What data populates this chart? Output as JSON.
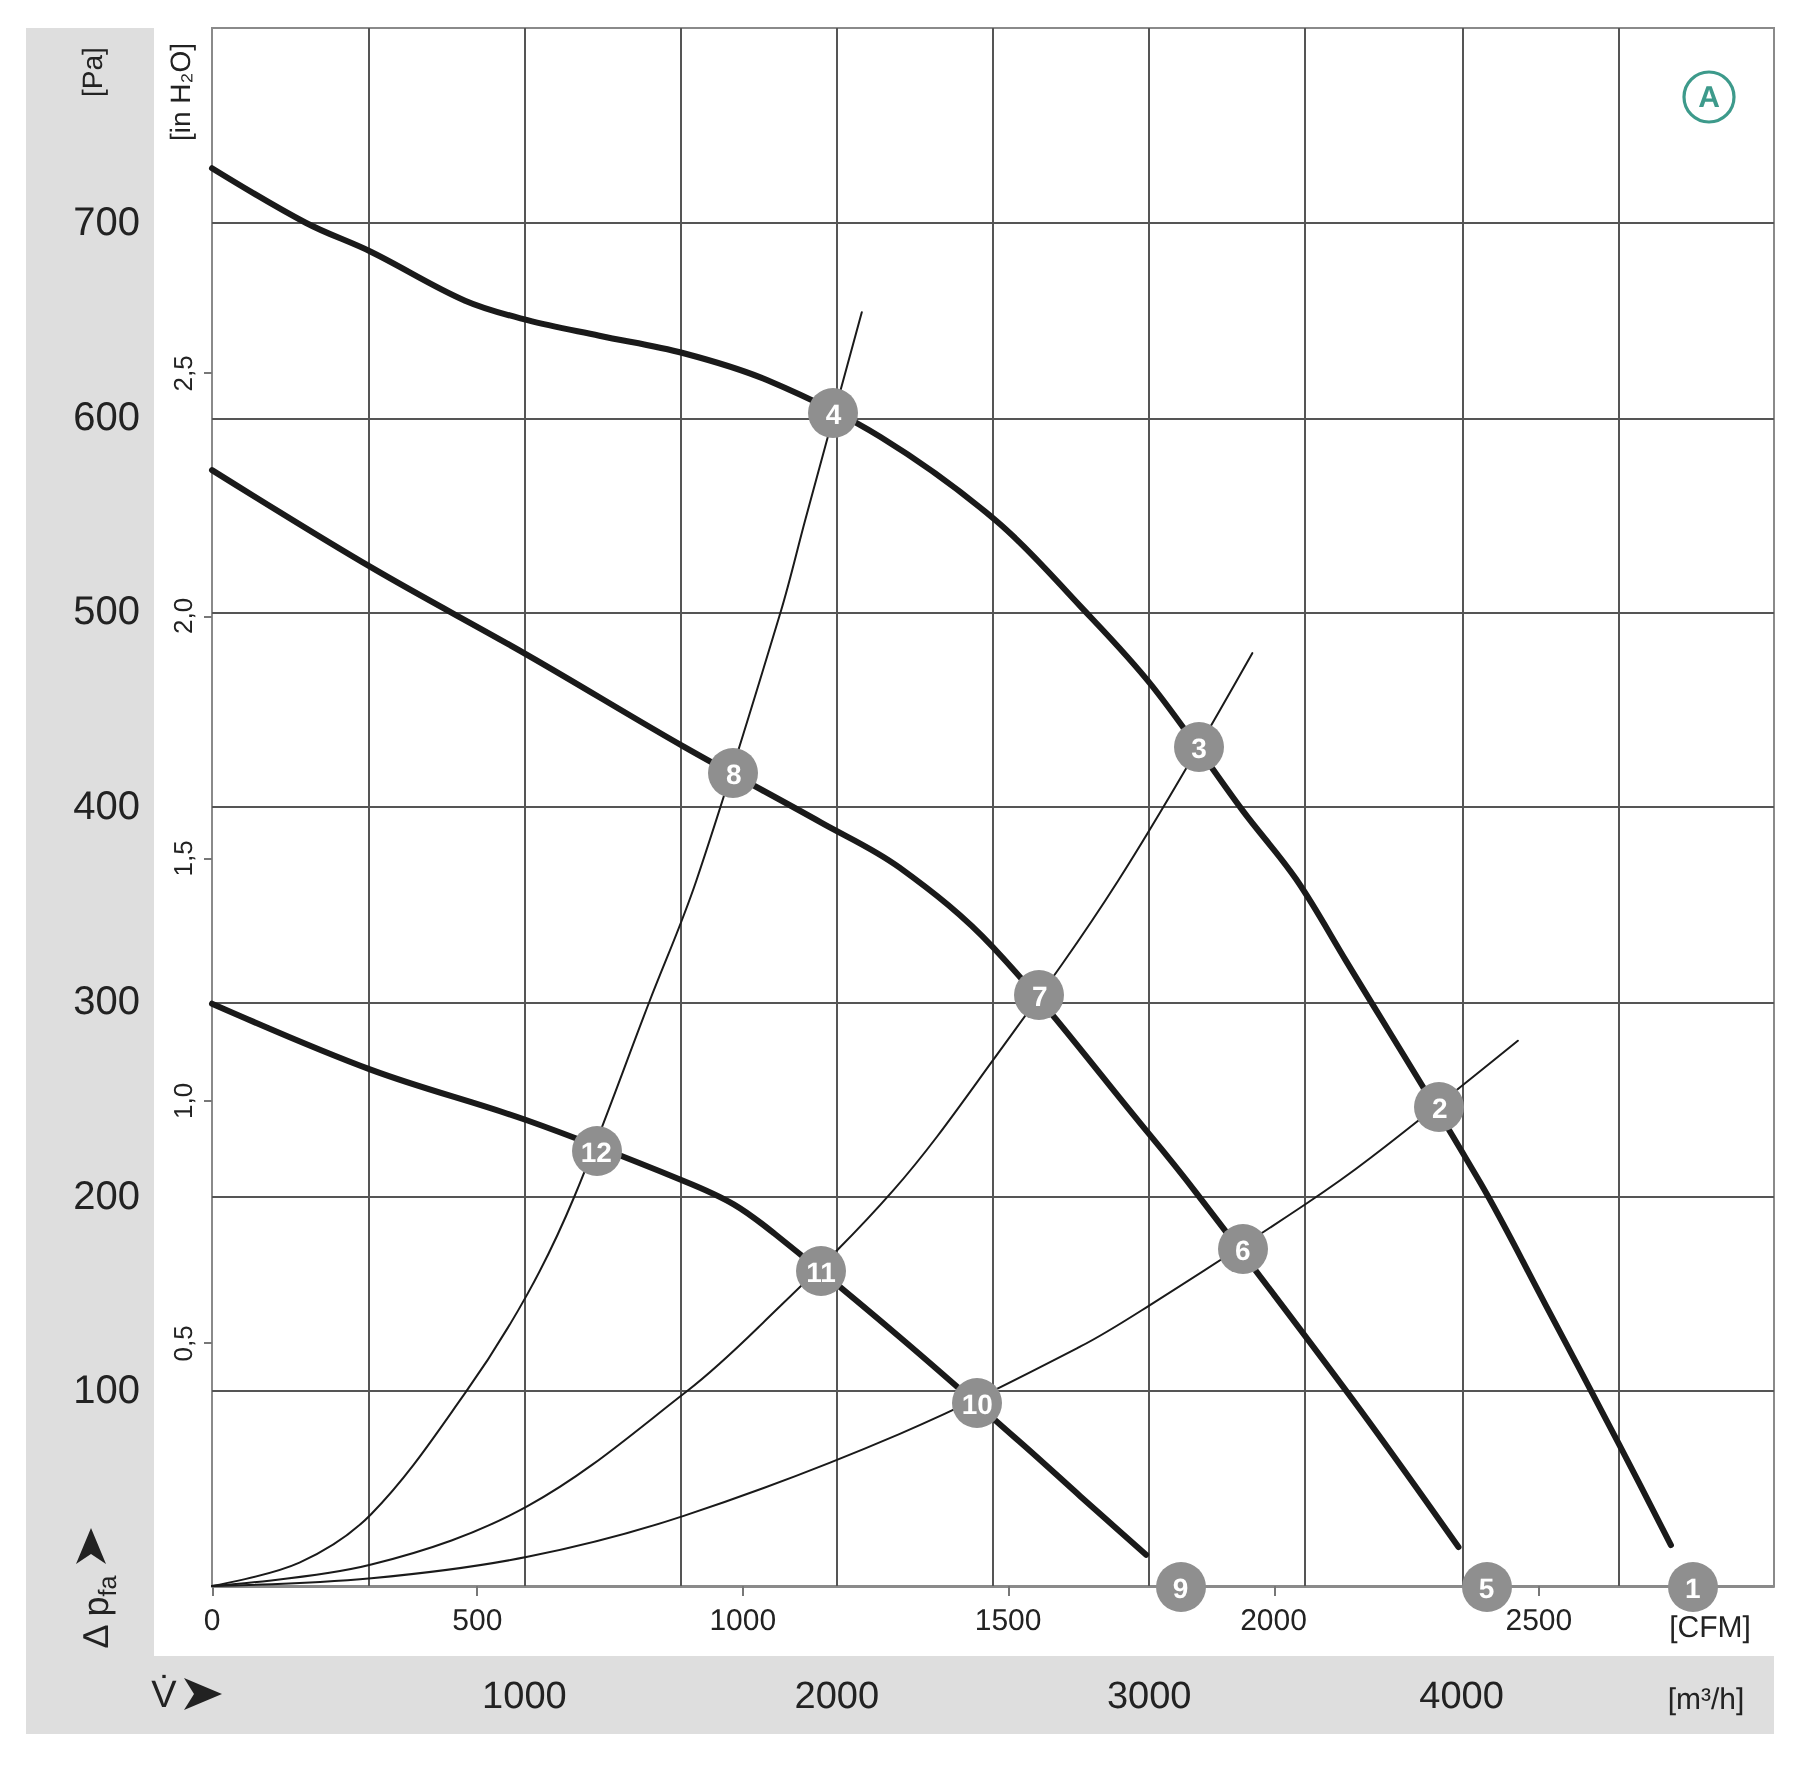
{
  "chart_data": {
    "type": "line",
    "xlabel": "[m³/h]",
    "x2label": "[CFM]",
    "ylabel": "[Pa]",
    "y2label": "[in H₂O]",
    "annotations": [
      "Δ p$_{fa}$",
      "V̇",
      "A",
      {
        "text": "1",
        "x": 4740,
        "y": 0
      },
      {
        "text": "2",
        "x": 3930,
        "y": 246
      },
      {
        "text": "3",
        "x": 3160,
        "y": 431
      },
      {
        "text": "4",
        "x": 1990,
        "y": 602
      },
      {
        "text": "5",
        "x": 4080,
        "y": 0
      },
      {
        "text": "6",
        "x": 3300,
        "y": 173
      },
      {
        "text": "7",
        "x": 2650,
        "y": 303
      },
      {
        "text": "8",
        "x": 1670,
        "y": 417
      },
      {
        "text": "9",
        "x": 3100,
        "y": 0
      },
      {
        "text": "10",
        "x": 2450,
        "y": 94
      },
      {
        "text": "11",
        "x": 1950,
        "y": 162
      },
      {
        "text": "12",
        "x": 1230,
        "y": 223
      }
    ],
    "xlim": [
      0,
      5000
    ],
    "xticks": [
      {
        "value": 500,
        "label": null
      },
      1000,
      {
        "value": 1500,
        "label": null
      },
      2000,
      {
        "value": 2500,
        "label": null
      },
      3000,
      {
        "value": 3500,
        "label": null
      },
      4000,
      {
        "value": 4500,
        "label": null
      }
    ],
    "x2lim": [
      0,
      2943
    ],
    "x2ticks": [
      0,
      500,
      1000,
      1500,
      2000,
      2500
    ],
    "ylim": [
      0,
      800
    ],
    "yticks": [
      100,
      200,
      300,
      400,
      500,
      600,
      700
    ],
    "y2lim": [
      0,
      3.212
    ],
    "y2ticks": [
      {
        "value": 0.5,
        "label": "0,5"
      },
      {
        "value": 1.0,
        "label": "1,0"
      },
      {
        "value": 1.5,
        "label": "1,5"
      },
      {
        "value": 2.0,
        "label": "2,0"
      },
      {
        "value": 2.5,
        "label": "2,5"
      }
    ],
    "grid": true,
    "marker": "none",
    "line_style": "solid",
    "series": [
      {
        "color": "#1a1a1a",
        "x": [
          0,
          300,
          510,
          810,
          1010,
          1240,
          1510,
          1780,
          2140,
          2510,
          2780,
          3010,
          3300,
          3470,
          3630,
          4060,
          4270,
          4500,
          4670
        ],
        "values": [
          728,
          700,
          685,
          660,
          650,
          642,
          633,
          619,
          590,
          547,
          503,
          462,
          398,
          363,
          321,
          207,
          144,
          74,
          21
        ]
      },
      {
        "color": "#1a1a1a",
        "x": [
          0,
          510,
          1010,
          1510,
          1950,
          2200,
          2500,
          3000,
          3150,
          3650,
          3990
        ],
        "values": [
          573,
          523,
          478,
          431,
          392,
          369,
          328,
          232,
          202,
          96,
          20
        ]
      },
      {
        "color": "#1a1a1a",
        "x": [
          0,
          510,
          1010,
          1510,
          1670,
          1800,
          2200,
          2600,
          2780,
          2990
        ],
        "values": [
          299,
          265,
          239,
          208,
          196,
          181,
          128,
          72,
          46,
          16
        ]
      },
      {
        "color": "#1a1a1a",
        "x": [
          0,
          280,
          510,
          810,
          1010,
          1160,
          1400,
          1550,
          1820,
          1900,
          2080
        ],
        "values": [
          0,
          12,
          37,
          99,
          150,
          200,
          300,
          362,
          500,
          548,
          654
        ]
      },
      {
        "color": "#1a1a1a",
        "x": [
          0,
          510,
          1010,
          1520,
          1750,
          2180,
          2500,
          2900,
          3330
        ],
        "values": [
          0,
          11,
          41,
          100,
          133,
          203,
          270,
          362,
          479
        ]
      },
      {
        "color": "#1a1a1a",
        "x": [
          0,
          510,
          1010,
          1510,
          2200,
          2780,
          3000,
          3500,
          3710,
          4180
        ],
        "values": [
          0,
          4,
          15,
          36,
          78,
          123,
          144,
          196,
          220,
          280
        ]
      }
    ]
  }
}
